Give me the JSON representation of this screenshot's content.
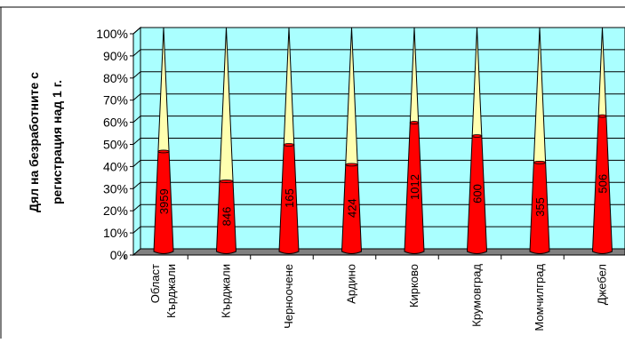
{
  "chart_data": {
    "type": "bar",
    "ylabel_line1": "Дял на безработните с",
    "ylabel_line2": "регистрация над 1 г.",
    "ylim": [
      0,
      100
    ],
    "y_ticks": [
      "0%",
      "10%",
      "20%",
      "30%",
      "40%",
      "50%",
      "60%",
      "70%",
      "80%",
      "90%",
      "100%"
    ],
    "categories": [
      "Област Кърджали",
      "Кърджали",
      "Черноочене",
      "Ардино",
      "Кирково",
      "Крумовград",
      "Момчилград",
      "Джебел"
    ],
    "category_lines": [
      [
        "Област",
        "Кърджали"
      ],
      [
        "Кърджали"
      ],
      [
        "Черноочене"
      ],
      [
        "Ардино"
      ],
      [
        "Кирково"
      ],
      [
        "Крумовград"
      ],
      [
        "Момчилград"
      ],
      [
        "Джебел"
      ]
    ],
    "series": [
      {
        "values": [
          44,
          30.5,
          47,
          38,
          57,
          51,
          39,
          60
        ],
        "labels": [
          "3959",
          "846",
          "165",
          "424",
          "1012",
          "600",
          "355",
          "506"
        ],
        "color": "#ff0000"
      },
      {
        "values": [
          56,
          69.5,
          53,
          62,
          43,
          49,
          61,
          40
        ],
        "color": "#ffffb0"
      }
    ],
    "stacked": true,
    "grid": true,
    "colors": {
      "plot_background": "#aaffff",
      "floor": "#808080",
      "series_1": "#ff0000",
      "series_2": "#ffffb0"
    }
  }
}
